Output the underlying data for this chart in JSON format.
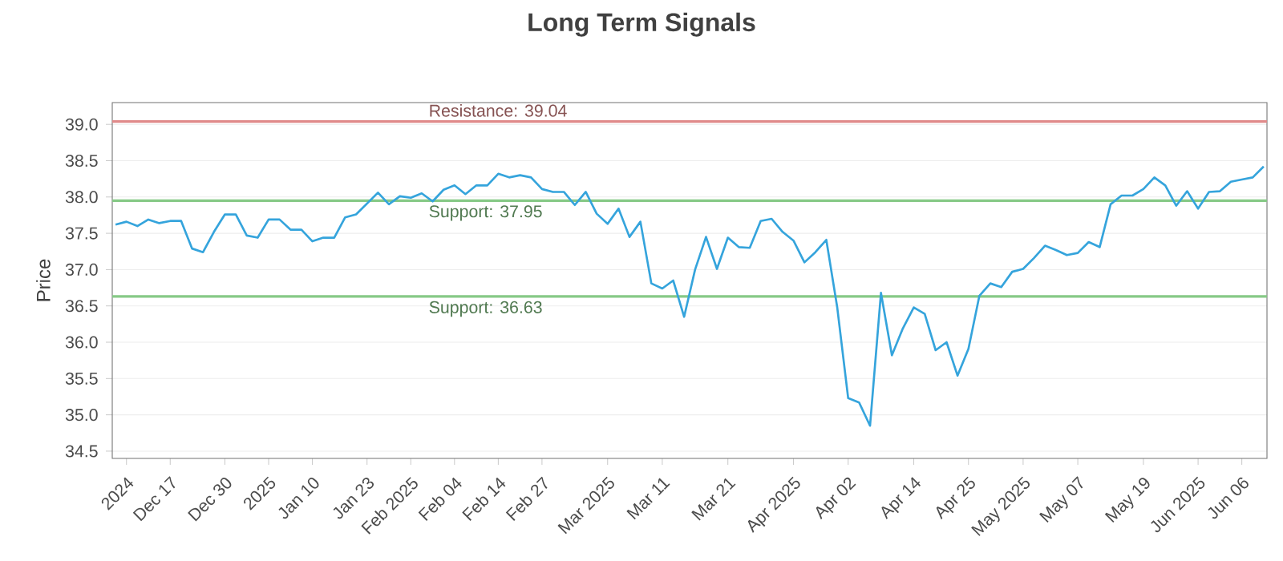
{
  "chart_data": {
    "type": "line",
    "title": "Long Term Signals",
    "ylabel": "Price",
    "categories": [
      null,
      "2024",
      null,
      null,
      null,
      "Dec 17",
      null,
      null,
      null,
      null,
      "Dec 30",
      null,
      null,
      null,
      "2025",
      null,
      null,
      null,
      "Jan 10",
      null,
      null,
      null,
      null,
      "Jan 23",
      null,
      null,
      null,
      "Feb 2025",
      null,
      null,
      null,
      "Feb 04",
      null,
      null,
      null,
      "Feb 14",
      null,
      null,
      null,
      "Feb 27",
      null,
      null,
      null,
      null,
      null,
      "Mar 2025",
      null,
      null,
      null,
      null,
      "Mar 11",
      null,
      null,
      null,
      null,
      null,
      "Mar 21",
      null,
      null,
      null,
      null,
      null,
      "Apr 2025",
      null,
      null,
      null,
      null,
      "Apr 02",
      null,
      null,
      null,
      null,
      null,
      "Apr 14",
      null,
      null,
      null,
      null,
      "Apr 25",
      null,
      null,
      null,
      null,
      "May 2025",
      null,
      null,
      null,
      null,
      "May 07",
      null,
      null,
      null,
      null,
      null,
      "May 19",
      null,
      null,
      null,
      null,
      "Jun 2025",
      null,
      null,
      null,
      "Jun 06",
      null,
      null
    ],
    "series": [
      {
        "color": "#35a4dc",
        "values": [
          37.62,
          37.66,
          37.6,
          37.69,
          37.64,
          37.67,
          37.67,
          37.29,
          37.24,
          37.52,
          37.76,
          37.76,
          37.47,
          37.44,
          37.69,
          37.69,
          37.55,
          37.55,
          37.39,
          37.44,
          37.44,
          37.72,
          37.76,
          37.91,
          38.06,
          37.9,
          38.01,
          37.99,
          38.05,
          37.94,
          38.1,
          38.16,
          38.04,
          38.16,
          38.16,
          38.32,
          38.27,
          38.3,
          38.27,
          38.11,
          38.07,
          38.07,
          37.89,
          38.07,
          37.77,
          37.63,
          37.84,
          37.45,
          37.66,
          36.81,
          36.74,
          36.85,
          36.35,
          37.0,
          37.45,
          37.01,
          37.44,
          37.31,
          37.3,
          37.67,
          37.7,
          37.52,
          37.4,
          37.1,
          37.24,
          37.41,
          36.48,
          35.23,
          35.17,
          34.85,
          36.68,
          35.82,
          36.19,
          36.48,
          36.39,
          35.89,
          36.0,
          35.54,
          35.91,
          36.64,
          36.81,
          36.76,
          36.97,
          37.01,
          37.16,
          37.33,
          37.27,
          37.2,
          37.23,
          37.38,
          37.31,
          37.9,
          38.02,
          38.02,
          38.11,
          38.27,
          38.16,
          37.88,
          38.08,
          37.84,
          38.07,
          38.08,
          38.21,
          38.24,
          38.27,
          38.42
        ]
      }
    ],
    "ylim": [
      34.4,
      39.3
    ],
    "yticks": [
      34.5,
      {
        "value": 35,
        "label": "35.0"
      },
      35.5,
      {
        "value": 36,
        "label": "36.0"
      },
      36.5,
      {
        "value": 37,
        "label": "37.0"
      },
      37.5,
      {
        "value": 38,
        "label": "38.0"
      },
      38.5,
      {
        "value": 39,
        "label": "39.0"
      }
    ],
    "grid": "y",
    "marker": "none",
    "line_style": "solid",
    "ref_lines": [
      {
        "axis": "y",
        "value": 39.04,
        "label": "Resistance: 39.04",
        "color": "#e08a8a"
      },
      {
        "axis": "y",
        "value": 37.95,
        "label": "Support: 37.95",
        "color": "#86c986"
      },
      {
        "axis": "y",
        "value": 36.63,
        "label": "Support: 36.63",
        "color": "#86c986"
      }
    ]
  }
}
